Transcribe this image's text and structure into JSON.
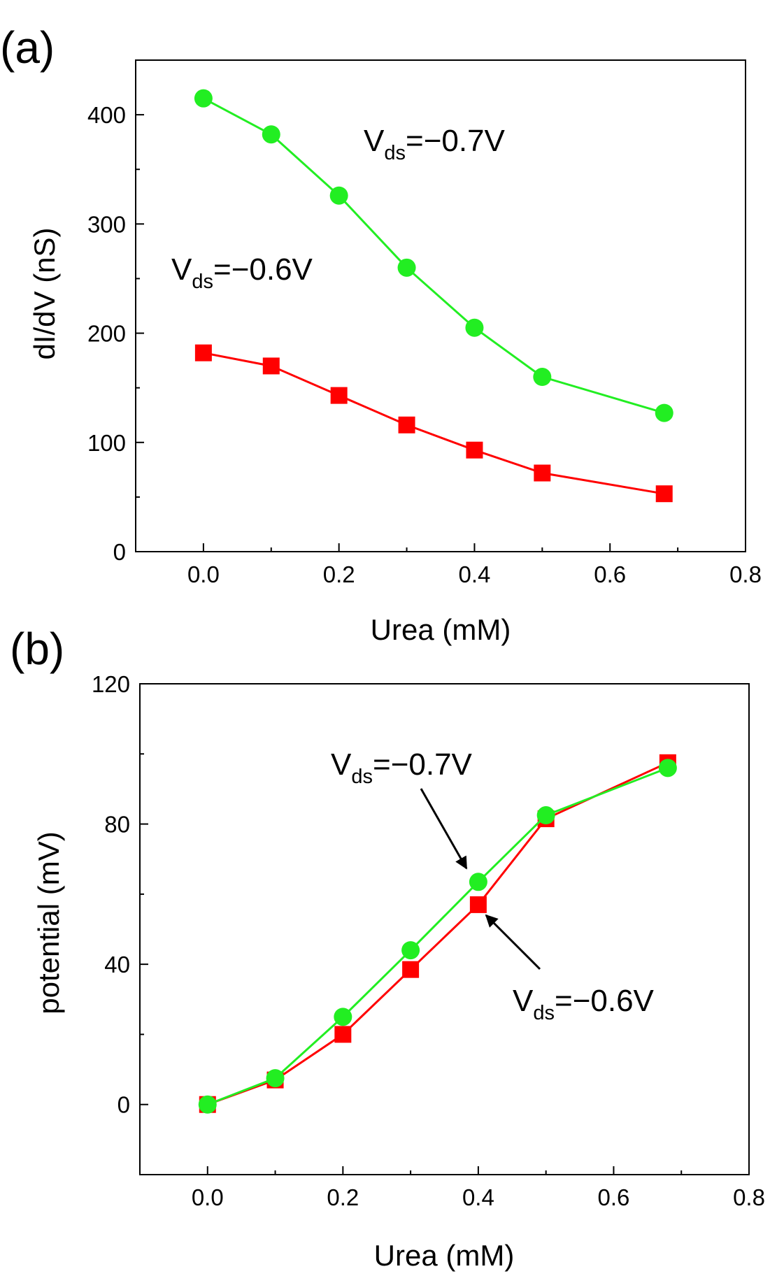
{
  "chart_data": [
    {
      "panel": "(a)",
      "type": "line",
      "xlabel": "Urea (mM)",
      "ylabel": "dI/dV (nS)",
      "xlim": [
        -0.1,
        0.8
      ],
      "ylim": [
        0,
        450
      ],
      "xticks": [
        0.0,
        0.2,
        0.4,
        0.6,
        0.8
      ],
      "xtick_labels": [
        "0.0",
        "0.2",
        "0.4",
        "0.6",
        "0.8"
      ],
      "yticks": [
        0,
        100,
        200,
        300,
        400
      ],
      "ytick_labels": [
        "0",
        "100",
        "200",
        "300",
        "400"
      ],
      "x": [
        0.0,
        0.1,
        0.2,
        0.3,
        0.4,
        0.5,
        0.68
      ],
      "series": [
        {
          "name": "Vds=-0.6V",
          "marker": "square",
          "color": "#ff0000",
          "values": [
            182,
            170,
            143,
            116,
            93,
            72,
            53
          ]
        },
        {
          "name": "Vds=-0.7V",
          "marker": "circle",
          "color": "#22ee22",
          "values": [
            415,
            382,
            326,
            260,
            205,
            160,
            127
          ]
        }
      ],
      "annotations": [
        {
          "main": "V",
          "sub": "ds",
          "rest": "=−0.7V"
        },
        {
          "main": "V",
          "sub": "ds",
          "rest": "=−0.6V"
        }
      ]
    },
    {
      "panel": "(b)",
      "type": "line",
      "xlabel": "Urea (mM)",
      "ylabel": "potential (mV)",
      "xlim": [
        -0.1,
        0.8
      ],
      "ylim": [
        -20,
        120
      ],
      "xticks": [
        0.0,
        0.2,
        0.4,
        0.6,
        0.8
      ],
      "xtick_labels": [
        "0.0",
        "0.2",
        "0.4",
        "0.6",
        "0.8"
      ],
      "yticks": [
        0,
        40,
        80,
        120
      ],
      "ytick_labels": [
        "0",
        "40",
        "80",
        "120"
      ],
      "x": [
        0.0,
        0.1,
        0.2,
        0.3,
        0.4,
        0.5,
        0.68
      ],
      "series": [
        {
          "name": "Vds=-0.6V",
          "marker": "square",
          "color": "#ff0000",
          "values": [
            0,
            7,
            20,
            38.5,
            57,
            81.5,
            97.5
          ]
        },
        {
          "name": "Vds=-0.7V",
          "marker": "circle",
          "color": "#22ee22",
          "values": [
            0,
            7.5,
            25,
            44,
            63.5,
            82.5,
            96
          ]
        }
      ],
      "annotations": [
        {
          "main": "V",
          "sub": "ds",
          "rest": "=−0.7V"
        },
        {
          "main": "V",
          "sub": "ds",
          "rest": "=−0.6V"
        }
      ]
    }
  ]
}
